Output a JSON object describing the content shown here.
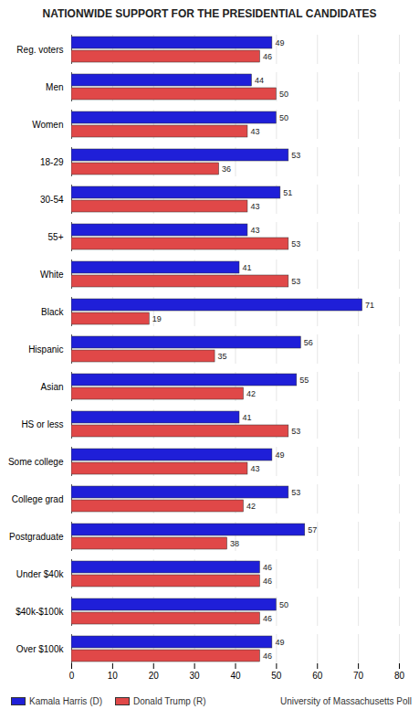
{
  "chart_data": {
    "type": "bar",
    "orientation": "horizontal",
    "title": "NATIONWIDE SUPPORT FOR THE PRESIDENTIAL CANDIDATES",
    "caption": "University of Massachusetts Poll",
    "categories": [
      "Reg. voters",
      "Men",
      "Women",
      "18-29",
      "30-54",
      "55+",
      "White",
      "Black",
      "Hispanic",
      "Asian",
      "HS or less",
      "Some college",
      "College grad",
      "Postgraduate",
      "Under $40k",
      "$40k-$100k",
      "Over $100k"
    ],
    "series": [
      {
        "name": "Kamala Harris (D)",
        "color": "#1f1fd8",
        "values": [
          49,
          44,
          50,
          53,
          51,
          43,
          41,
          71,
          56,
          55,
          41,
          49,
          53,
          57,
          46,
          50,
          49
        ]
      },
      {
        "name": "Donald Trump (R)",
        "color": "#e04848",
        "values": [
          46,
          50,
          43,
          36,
          43,
          53,
          53,
          19,
          35,
          42,
          53,
          43,
          42,
          38,
          46,
          46,
          46
        ]
      }
    ],
    "xlim": [
      0,
      80
    ],
    "xticks": [
      0,
      10,
      20,
      30,
      40,
      50,
      60,
      70,
      80
    ],
    "grid": true,
    "data_labels": true,
    "legend": "bottom"
  }
}
